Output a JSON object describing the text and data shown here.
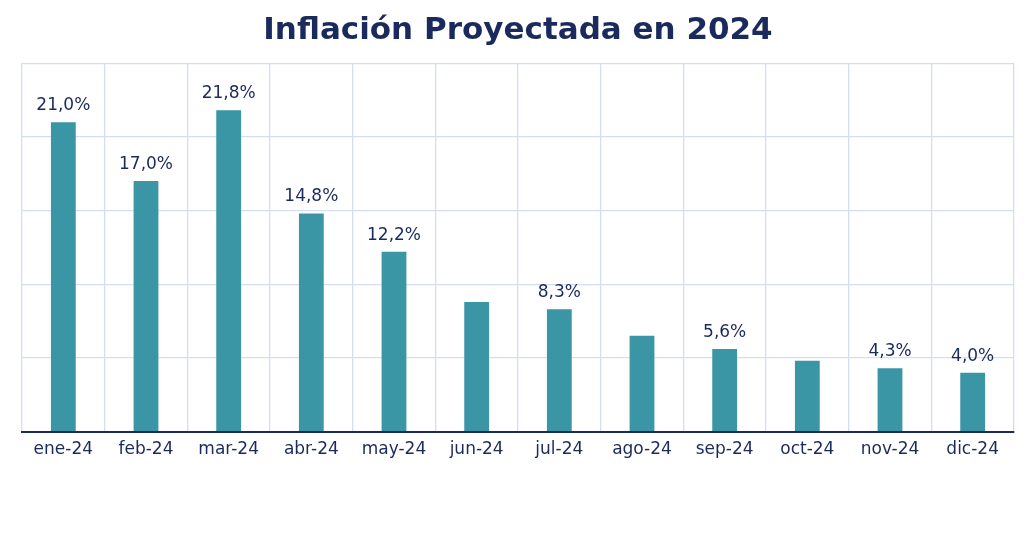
{
  "chart_data": {
    "type": "bar",
    "title": "Inflación Proyectada en 2024",
    "categories": [
      "ene-24",
      "feb-24",
      "mar-24",
      "abr-24",
      "may-24",
      "jun-24",
      "jul-24",
      "ago-24",
      "sep-24",
      "oct-24",
      "nov-24",
      "dic-24"
    ],
    "values": [
      21.0,
      17.0,
      21.8,
      14.8,
      12.2,
      8.8,
      8.3,
      6.5,
      5.6,
      4.8,
      4.3,
      4.0
    ],
    "value_labels": [
      "21,0%",
      "17,0%",
      "21,8%",
      "14,8%",
      "12,2%",
      null,
      "8,3%",
      null,
      "5,6%",
      null,
      "4,3%",
      "4,0%"
    ],
    "color": "#3a95a5",
    "ylim": [
      0,
      25
    ],
    "yticks": [
      {
        "value": 0,
        "label": null
      },
      {
        "value": 5,
        "label": null
      },
      {
        "value": 10,
        "label": null
      },
      {
        "value": 15,
        "label": null
      },
      {
        "value": 20,
        "label": null
      },
      {
        "value": 25,
        "label": null
      }
    ],
    "tick_labels": "x",
    "grid": true,
    "legend": false
  }
}
